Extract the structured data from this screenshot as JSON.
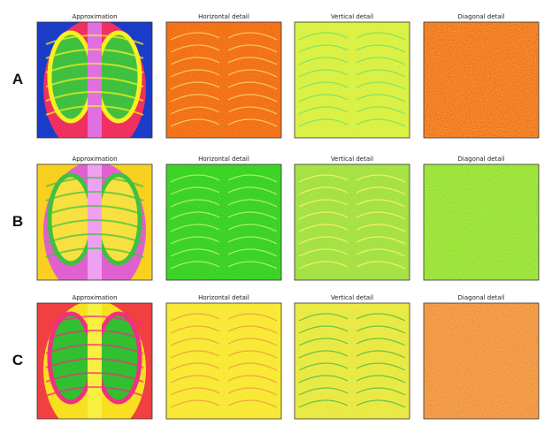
{
  "rows": [
    {
      "label": "A",
      "panels": [
        "Approximation",
        "Horizontal detail",
        "Vertical detail",
        "Diagonal detail"
      ]
    },
    {
      "label": "B",
      "panels": [
        "Approximation",
        "Horizontal detail",
        "Vertical detail",
        "Diagonal detail"
      ]
    },
    {
      "label": "C",
      "panels": [
        "Approximation",
        "Horizontal detail",
        "Vertical detail",
        "Diagonal detail"
      ]
    }
  ]
}
